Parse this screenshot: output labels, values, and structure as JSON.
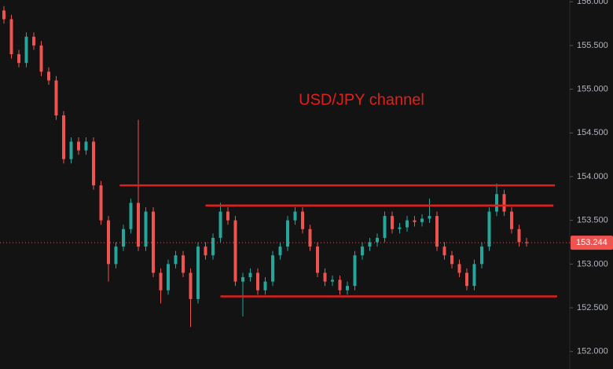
{
  "chart_data": {
    "type": "candlestick",
    "annotation": "USD/JPY channel",
    "annotation_color": "#e0201c",
    "up_color": "#26a69a",
    "down_color": "#ef5350",
    "open": [
      155.9,
      155.8,
      155.4,
      155.3,
      155.6,
      155.5,
      155.2,
      155.1,
      154.7,
      154.2,
      154.4,
      154.3,
      154.4,
      153.9,
      153.5,
      153.0,
      153.2,
      153.4,
      153.7,
      153.2,
      153.6,
      152.9,
      152.7,
      153.0,
      153.1,
      152.9,
      152.6,
      153.2,
      153.1,
      153.3,
      153.6,
      153.5,
      152.8,
      152.85,
      152.9,
      152.7,
      152.8,
      153.1,
      153.2,
      153.5,
      153.6,
      153.4,
      153.2,
      152.9,
      152.8,
      152.82,
      152.7,
      152.75,
      153.1,
      153.2,
      153.25,
      153.3,
      153.55,
      153.4,
      153.42,
      153.5,
      153.48,
      153.52,
      153.55,
      153.2,
      153.1,
      153.0,
      152.9,
      152.75,
      153.0,
      153.2,
      153.6,
      153.8,
      153.6,
      153.4,
      153.25
    ],
    "high": [
      155.95,
      155.85,
      155.45,
      155.65,
      155.65,
      155.55,
      155.25,
      155.15,
      154.75,
      154.45,
      154.45,
      154.45,
      154.45,
      153.95,
      153.55,
      153.25,
      153.45,
      153.75,
      154.65,
      153.65,
      153.65,
      152.95,
      153.05,
      153.15,
      153.15,
      152.95,
      153.25,
      153.25,
      153.35,
      153.7,
      153.65,
      153.55,
      152.9,
      152.95,
      152.95,
      152.85,
      153.15,
      153.25,
      153.55,
      153.65,
      153.65,
      153.45,
      153.25,
      152.95,
      152.87,
      152.87,
      152.8,
      153.15,
      153.25,
      153.3,
      153.35,
      153.6,
      153.6,
      153.47,
      153.55,
      153.55,
      153.57,
      153.75,
      153.6,
      153.25,
      153.15,
      153.05,
      152.95,
      153.05,
      153.25,
      153.65,
      153.92,
      153.85,
      153.65,
      153.45,
      153.3
    ],
    "low": [
      155.75,
      155.35,
      155.25,
      155.25,
      155.45,
      155.15,
      155.05,
      154.65,
      154.15,
      154.15,
      154.25,
      154.25,
      153.85,
      153.45,
      152.8,
      152.95,
      153.15,
      153.35,
      153.15,
      153.15,
      152.85,
      152.55,
      152.65,
      152.95,
      152.85,
      152.28,
      152.55,
      153.05,
      153.05,
      153.25,
      153.45,
      152.75,
      152.4,
      152.8,
      152.65,
      152.65,
      152.75,
      153.05,
      153.15,
      153.45,
      153.35,
      153.15,
      152.85,
      152.75,
      152.75,
      152.65,
      152.65,
      152.7,
      153.05,
      153.15,
      153.2,
      153.25,
      153.35,
      153.35,
      153.37,
      153.43,
      153.43,
      153.47,
      153.15,
      153.05,
      152.95,
      152.85,
      152.7,
      152.7,
      152.95,
      153.15,
      153.55,
      153.55,
      153.35,
      153.2,
      153.2
    ],
    "close": [
      155.8,
      155.4,
      155.3,
      155.6,
      155.5,
      155.2,
      155.1,
      154.7,
      154.2,
      154.4,
      154.3,
      154.4,
      153.9,
      153.5,
      153.0,
      153.2,
      153.4,
      153.7,
      153.2,
      153.6,
      152.9,
      152.7,
      153.0,
      153.1,
      152.9,
      152.6,
      153.2,
      153.1,
      153.3,
      153.6,
      153.5,
      152.8,
      152.85,
      152.9,
      152.7,
      152.8,
      153.1,
      153.2,
      153.5,
      153.6,
      153.4,
      153.2,
      152.9,
      152.8,
      152.82,
      152.7,
      152.75,
      153.1,
      153.2,
      153.25,
      153.3,
      153.55,
      153.4,
      153.42,
      153.5,
      153.48,
      153.52,
      153.55,
      153.2,
      153.1,
      153.0,
      152.9,
      152.75,
      153.0,
      153.2,
      153.6,
      153.8,
      153.6,
      153.4,
      153.25,
      153.24
    ],
    "channel_lines": [
      {
        "y": 153.9,
        "x": [
          15.5,
          73.8
        ]
      },
      {
        "y": 153.67,
        "x": [
          27,
          73.6
        ]
      },
      {
        "y": 152.63,
        "x": [
          29,
          74.1
        ]
      }
    ],
    "last_price": {
      "value": 153.244,
      "label": "153.244"
    },
    "ylim": [
      151.8,
      156.02
    ],
    "yticks": [
      {
        "value": 152,
        "label": "152.000"
      },
      {
        "value": 152.5,
        "label": "152.500"
      },
      {
        "value": 153,
        "label": "153.000"
      },
      {
        "value": 153.5,
        "label": "153.500"
      },
      {
        "value": 154,
        "label": "154.000"
      },
      {
        "value": 154.5,
        "label": "154.500"
      },
      {
        "value": 155,
        "label": "155.000"
      },
      {
        "value": 155.5,
        "label": "155.500"
      },
      {
        "value": 156,
        "label": "156.000"
      }
    ]
  }
}
